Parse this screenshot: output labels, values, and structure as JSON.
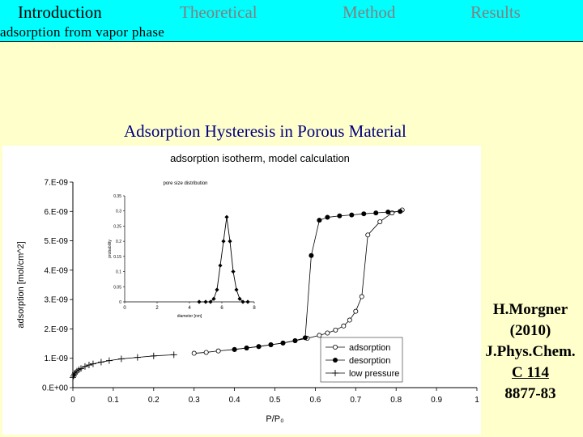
{
  "header": {
    "tabs": [
      {
        "label": "Introduction",
        "active": true
      },
      {
        "label": "Theoretical",
        "active": false
      },
      {
        "label": "Method",
        "active": false
      },
      {
        "label": "Results",
        "active": false
      }
    ],
    "subtitle": "adsorption from vapor phase",
    "colors": {
      "background": "#00ffff",
      "active": "#000000",
      "inactive": "#808080"
    }
  },
  "slide": {
    "title": "Adsorption Hysteresis in Porous Material",
    "title_color": "#000080",
    "background": "#ffffcc"
  },
  "citation": {
    "line1": "H.Morgner",
    "line2": "(2010)",
    "line3": "J.Phys.Chem.",
    "line4": "C 114",
    "line5": "8877-83"
  },
  "chart_data": [
    {
      "type": "scatter",
      "title": "adsorption isotherm, model calculation",
      "xlabel": "P/P₀",
      "ylabel": "adsorption [mol/cm^2]",
      "xlim": [
        0,
        1
      ],
      "ylim": [
        0,
        7e-09
      ],
      "x_ticks": [
        "0",
        "0.1",
        "0.2",
        "0.3",
        "0.4",
        "0.5",
        "0.6",
        "0.7",
        "0.8",
        "0.9",
        "1"
      ],
      "y_ticks": [
        "0.E+00",
        "1.E-09",
        "2.E-09",
        "3.E-09",
        "4.E-09",
        "5.E-09",
        "6.E-09",
        "7.E-09"
      ],
      "legend_position": "bottom-right",
      "grid": false,
      "series": [
        {
          "name": "adsorption",
          "marker": "open-circle",
          "color": "#000000",
          "x": [
            0.3,
            0.33,
            0.36,
            0.4,
            0.43,
            0.46,
            0.49,
            0.52,
            0.55,
            0.58,
            0.61,
            0.63,
            0.65,
            0.67,
            0.685,
            0.7,
            0.715,
            0.73,
            0.76,
            0.79,
            0.815
          ],
          "y": [
            1.17e-09,
            1.2e-09,
            1.25e-09,
            1.3e-09,
            1.35e-09,
            1.4e-09,
            1.46e-09,
            1.52e-09,
            1.6e-09,
            1.68e-09,
            1.78e-09,
            1.86e-09,
            1.96e-09,
            2.1e-09,
            2.3e-09,
            2.6e-09,
            3.1e-09,
            5.2e-09,
            5.65e-09,
            5.95e-09,
            6.05e-09
          ]
        },
        {
          "name": "desorption",
          "marker": "filled-circle",
          "color": "#000000",
          "x": [
            0.4,
            0.43,
            0.46,
            0.49,
            0.52,
            0.55,
            0.575,
            0.59,
            0.61,
            0.63,
            0.66,
            0.69,
            0.72,
            0.75,
            0.78,
            0.81
          ],
          "y": [
            1.3e-09,
            1.35e-09,
            1.4e-09,
            1.46e-09,
            1.52e-09,
            1.6e-09,
            1.7e-09,
            4.5e-09,
            5.7e-09,
            5.8e-09,
            5.85e-09,
            5.88e-09,
            5.92e-09,
            5.95e-09,
            5.98e-09,
            6e-09
          ]
        },
        {
          "name": "low pressure",
          "marker": "plus",
          "color": "#000000",
          "x": [
            0.0,
            0.002,
            0.004,
            0.006,
            0.01,
            0.015,
            0.02,
            0.03,
            0.04,
            0.05,
            0.07,
            0.09,
            0.12,
            0.16,
            0.2,
            0.25
          ],
          "y": [
            3.5e-10,
            4e-10,
            4.6e-10,
            5e-10,
            5.6e-10,
            6.1e-10,
            6.5e-10,
            7.2e-10,
            7.7e-10,
            8.1e-10,
            8.7e-10,
            9.2e-10,
            9.8e-10,
            1.03e-09,
            1.08e-09,
            1.12e-09
          ]
        }
      ]
    },
    {
      "type": "line",
      "title": "pore size distribution",
      "xlabel": "diameter [nm]",
      "ylabel": "probability",
      "xlim": [
        0,
        8
      ],
      "ylim": [
        0,
        0.35
      ],
      "x_ticks": [
        "0",
        "2",
        "4",
        "6",
        "8"
      ],
      "y_ticks": [
        "0",
        "0.05",
        "0.1",
        "0.15",
        "0.2",
        "0.25",
        "0.3",
        "0.35"
      ],
      "series": [
        {
          "marker": "filled-diamond",
          "color": "#000000",
          "x": [
            4.6,
            5.0,
            5.3,
            5.5,
            5.7,
            5.9,
            6.1,
            6.3,
            6.5,
            6.7,
            6.9,
            7.1,
            7.3,
            7.6
          ],
          "y": [
            0.0,
            0.0,
            0.0,
            0.01,
            0.04,
            0.12,
            0.2,
            0.28,
            0.2,
            0.1,
            0.04,
            0.01,
            0.0,
            0.0
          ]
        }
      ]
    }
  ]
}
